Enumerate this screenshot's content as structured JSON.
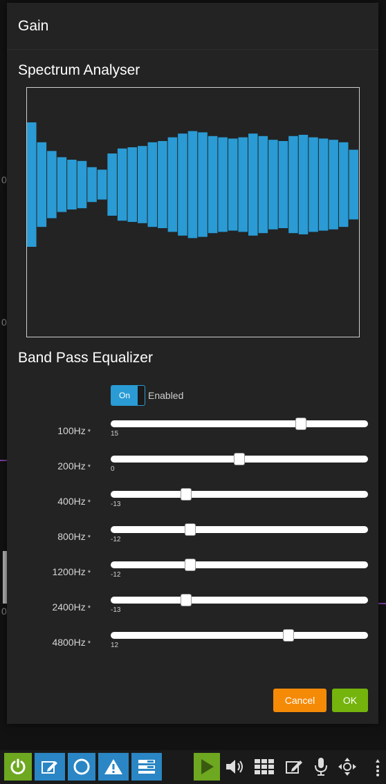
{
  "dialog": {
    "title": "Gain"
  },
  "spectrum": {
    "title": "Spectrum Analyser",
    "bar_color": "#2a9bd4",
    "levels": [
      0.5,
      0.34,
      0.27,
      0.22,
      0.2,
      0.19,
      0.14,
      0.12,
      0.25,
      0.29,
      0.3,
      0.31,
      0.34,
      0.35,
      0.38,
      0.41,
      0.43,
      0.42,
      0.39,
      0.38,
      0.37,
      0.38,
      0.41,
      0.39,
      0.36,
      0.35,
      0.39,
      0.4,
      0.38,
      0.37,
      0.36,
      0.34,
      0.28
    ]
  },
  "equalizer": {
    "title": "Band Pass Equalizer",
    "toggle_on_label": "On",
    "toggle_status": "Enabled",
    "min": -30,
    "max": 30,
    "bands": [
      {
        "label": "100Hz",
        "star": "*",
        "value": 15,
        "value_text": "15"
      },
      {
        "label": "200Hz",
        "star": "*",
        "value": 0,
        "value_text": "0"
      },
      {
        "label": "400Hz",
        "star": "*",
        "value": -13,
        "value_text": "-13"
      },
      {
        "label": "800Hz",
        "star": "*",
        "value": -12,
        "value_text": "-12"
      },
      {
        "label": "1200Hz",
        "star": "*",
        "value": -12,
        "value_text": "-12"
      },
      {
        "label": "2400Hz",
        "star": "*",
        "value": -13,
        "value_text": "-13"
      },
      {
        "label": "4800Hz",
        "star": "*",
        "value": 12,
        "value_text": "12"
      }
    ]
  },
  "actions": {
    "cancel_label": "Cancel",
    "ok_label": "OK"
  },
  "colors": {
    "accent_blue": "#2a9bd4",
    "cancel_orange": "#f58a07",
    "ok_green": "#74b40c"
  },
  "toolbar": {
    "icons": [
      "power-icon",
      "edit-icon",
      "record-circle-icon",
      "warning-icon",
      "list-icon",
      "play-icon",
      "volume-icon",
      "grid-icon",
      "note-edit-icon",
      "microphone-icon",
      "move-icon",
      "more-icon"
    ]
  }
}
